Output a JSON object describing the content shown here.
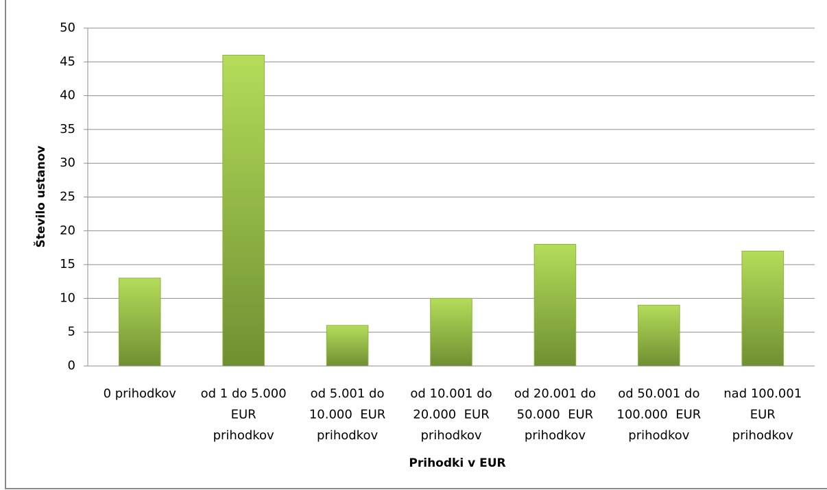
{
  "chart_data": {
    "type": "bar",
    "x_label": "Prihodki v EUR",
    "y_label": "Število ustanov",
    "categories": [
      [
        "0 prihodkov"
      ],
      [
        "od 1 do 5.000",
        "EUR",
        "prihodkov"
      ],
      [
        "od 5.001 do",
        "10.000  EUR",
        "prihodkov"
      ],
      [
        "od 10.001 do",
        "20.000  EUR",
        "prihodkov"
      ],
      [
        "od 20.001 do",
        "50.000  EUR",
        "prihodkov"
      ],
      [
        "od 50.001 do",
        "100.000  EUR",
        "prihodkov"
      ],
      [
        "nad 100.001",
        "EUR",
        "prihodkov"
      ]
    ],
    "values": [
      13,
      46,
      6,
      10,
      18,
      9,
      17
    ],
    "color": "#8db43e",
    "ylim": [
      0,
      50
    ],
    "yticks": [
      0,
      5,
      10,
      15,
      20,
      25,
      30,
      35,
      40,
      45,
      50
    ],
    "grid": true
  }
}
